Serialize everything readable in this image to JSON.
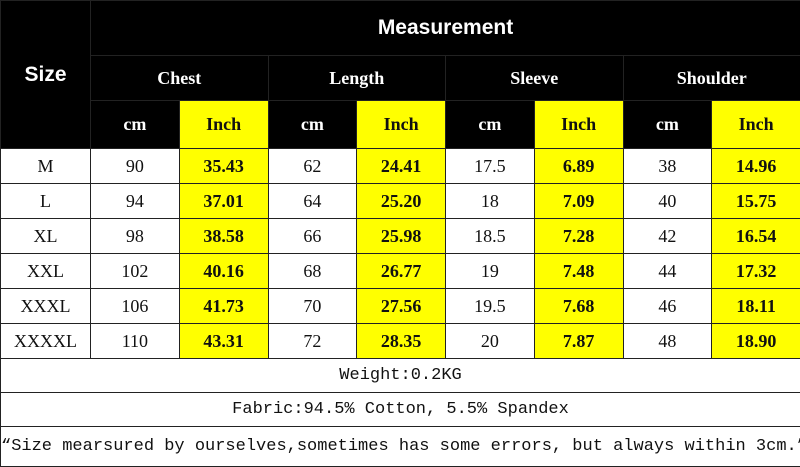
{
  "header": {
    "size": "Size",
    "measurement": "Measurement",
    "groups": [
      "Chest",
      "Length",
      "Sleeve",
      "Shoulder"
    ],
    "units": [
      "cm",
      "Inch",
      "cm",
      "Inch",
      "cm",
      "Inch",
      "cm",
      "Inch"
    ]
  },
  "table": {
    "rows": [
      [
        "M",
        "90",
        "35.43",
        "62",
        "24.41",
        "17.5",
        "6.89",
        "38",
        "14.96"
      ],
      [
        "L",
        "94",
        "37.01",
        "64",
        "25.20",
        "18",
        "7.09",
        "40",
        "15.75"
      ],
      [
        "XL",
        "98",
        "38.58",
        "66",
        "25.98",
        "18.5",
        "7.28",
        "42",
        "16.54"
      ],
      [
        "XXL",
        "102",
        "40.16",
        "68",
        "26.77",
        "19",
        "7.48",
        "44",
        "17.32"
      ],
      [
        "XXXL",
        "106",
        "41.73",
        "70",
        "27.56",
        "19.5",
        "7.68",
        "46",
        "18.11"
      ],
      [
        "XXXXL",
        "110",
        "43.31",
        "72",
        "28.35",
        "20",
        "7.87",
        "48",
        "18.90"
      ]
    ]
  },
  "footer": [
    "Weight:0.2KG",
    "Fabric:94.5% Cotton, 5.5% Spandex",
    "“Size mearsured by ourselves,sometimes has some errors, but always within 3cm.”"
  ]
}
